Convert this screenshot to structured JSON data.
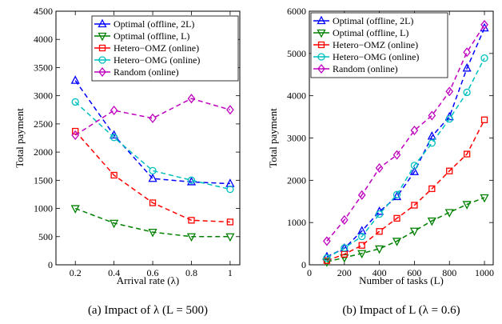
{
  "chart_data": [
    {
      "type": "line",
      "caption": "(a)  Impact of λ (L = 500)",
      "xlabel": "Arrival rate (λ)",
      "ylabel": "Total payment",
      "x": [
        0.2,
        0.4,
        0.6,
        0.8,
        1
      ],
      "xlim": [
        0.1,
        1.05
      ],
      "ylim": [
        0,
        4500
      ],
      "xticks": [
        "0.2",
        "0.4",
        "0.6",
        "0.8",
        "1"
      ],
      "yticks": [
        "0",
        "500",
        "1000",
        "1500",
        "2000",
        "2500",
        "3000",
        "3500",
        "4000",
        "4500"
      ],
      "grid": false,
      "legend_position": "top-right",
      "series": [
        {
          "name": "Optimal (offline, 2L)",
          "color": "#0000ff",
          "marker": "triangle-up",
          "values": [
            3270,
            2300,
            1530,
            1470,
            1440
          ]
        },
        {
          "name": "Optimal (offline, L)",
          "color": "#008000",
          "marker": "triangle-down",
          "values": [
            1000,
            740,
            580,
            500,
            500
          ]
        },
        {
          "name": "Hetero−OMZ (online)",
          "color": "#ff0000",
          "marker": "square",
          "values": [
            2370,
            1590,
            1100,
            790,
            760
          ]
        },
        {
          "name": "Hetero−OMG (online)",
          "color": "#00bfbf",
          "marker": "circle",
          "values": [
            2890,
            2260,
            1670,
            1500,
            1340
          ]
        },
        {
          "name": "Random (online)",
          "color": "#bf00bf",
          "marker": "diamond",
          "values": [
            2300,
            2740,
            2600,
            2950,
            2750
          ]
        }
      ]
    },
    {
      "type": "line",
      "caption": "(b)  Impact of L (λ = 0.6)",
      "xlabel": "Number of tasks (L)",
      "ylabel": "Total payment",
      "x": [
        100,
        200,
        300,
        400,
        500,
        600,
        700,
        800,
        900,
        1000
      ],
      "xlim": [
        0,
        1050
      ],
      "ylim": [
        0,
        6000
      ],
      "xticks": [
        "0",
        "200",
        "400",
        "600",
        "800",
        "1000"
      ],
      "yticks": [
        "0",
        "1000",
        "2000",
        "3000",
        "4000",
        "5000",
        "6000"
      ],
      "grid": false,
      "legend_position": "top-left",
      "series": [
        {
          "name": "Optimal (offline, 2L)",
          "color": "#0000ff",
          "marker": "triangle-up",
          "values": [
            190,
            390,
            800,
            1260,
            1610,
            2200,
            3040,
            3500,
            4650,
            5600
          ]
        },
        {
          "name": "Optimal (offline, L)",
          "color": "#008000",
          "marker": "triangle-down",
          "values": [
            70,
            170,
            270,
            380,
            560,
            800,
            1040,
            1240,
            1430,
            1590
          ]
        },
        {
          "name": "Hetero−OMZ (online)",
          "color": "#ff0000",
          "marker": "square",
          "values": [
            100,
            250,
            460,
            790,
            1100,
            1410,
            1800,
            2220,
            2620,
            3430
          ]
        },
        {
          "name": "Hetero−OMG (online)",
          "color": "#00bfbf",
          "marker": "circle",
          "values": [
            160,
            400,
            670,
            1200,
            1660,
            2350,
            2880,
            3450,
            4080,
            4890
          ]
        },
        {
          "name": "Random (online)",
          "color": "#bf00bf",
          "marker": "diamond",
          "values": [
            560,
            1060,
            1650,
            2290,
            2600,
            3180,
            3530,
            4100,
            5030,
            5680
          ]
        }
      ]
    }
  ]
}
